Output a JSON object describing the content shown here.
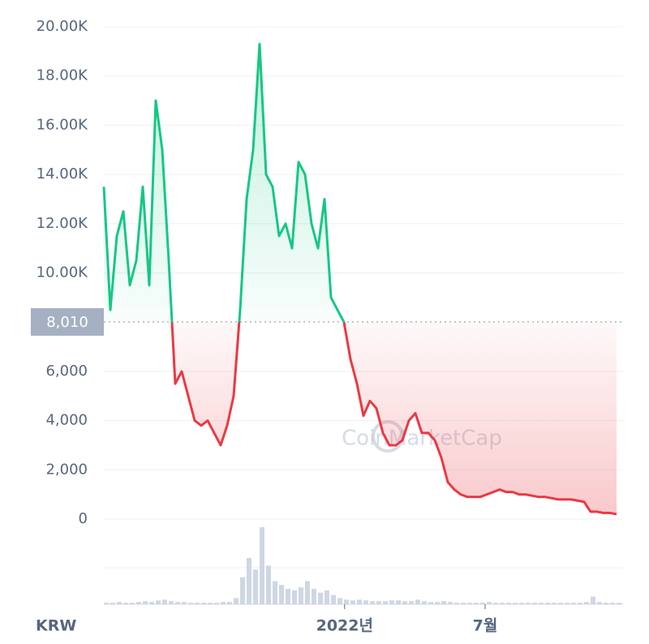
{
  "chart_data": {
    "type": "line",
    "currency": "KRW",
    "watermark": "CoinMarketCap",
    "series": [
      {
        "values": [
          13500,
          8500,
          11500,
          12500,
          9500,
          10500,
          13500,
          9500,
          17000,
          15000,
          10500,
          5500,
          6000,
          5000,
          4000,
          3800,
          4000,
          3500,
          3000,
          3800,
          5000,
          8500,
          13000,
          15000,
          19300,
          14000,
          13500,
          11500,
          12000,
          11000,
          14500,
          14000,
          12000,
          11000,
          13000,
          9000,
          8500,
          8000,
          6500,
          5500,
          4200,
          4800,
          4500,
          3500,
          3000,
          3000,
          3200,
          4000,
          4300,
          3500,
          3500,
          3200,
          2500,
          1500,
          1200,
          1000,
          900,
          900,
          900,
          1000,
          1100,
          1200,
          1100,
          1100,
          1000,
          1000,
          950,
          900,
          900,
          850,
          800,
          800,
          800,
          750,
          700,
          300,
          300,
          250,
          250,
          200
        ],
        "up_color": "#16c784",
        "down_color": "#ea3943"
      }
    ],
    "volume": [
      2,
      2,
      3,
      2,
      2,
      3,
      4,
      3,
      5,
      6,
      4,
      3,
      3,
      2,
      2,
      2,
      2,
      2,
      3,
      3,
      8,
      35,
      60,
      45,
      100,
      50,
      30,
      25,
      20,
      18,
      22,
      30,
      20,
      15,
      18,
      12,
      8,
      6,
      5,
      6,
      5,
      4,
      4,
      4,
      5,
      5,
      4,
      4,
      6,
      4,
      3,
      3,
      4,
      3,
      2,
      2,
      2,
      2,
      2,
      3,
      2,
      2,
      2,
      2,
      2,
      2,
      2,
      2,
      2,
      2,
      2,
      2,
      2,
      2,
      3,
      10,
      3,
      2,
      2,
      2
    ],
    "baseline": {
      "value": 8010,
      "label": "8,010"
    },
    "xlim": [
      0,
      80
    ],
    "xticks": [
      {
        "value": 37.1,
        "label": "2022년"
      },
      {
        "value": 58.75,
        "label": "7월"
      }
    ],
    "ylim": [
      0,
      20000
    ],
    "yticks": [
      0,
      {
        "value": 2000,
        "label": "2,000"
      },
      {
        "value": 4000,
        "label": "4,000"
      },
      {
        "value": 6000,
        "label": "6,000"
      },
      {
        "value": 10000,
        "label": "10.00K"
      },
      {
        "value": 12000,
        "label": "12.00K"
      },
      {
        "value": 14000,
        "label": "14.00K"
      },
      {
        "value": 16000,
        "label": "16.00K"
      },
      {
        "value": 18000,
        "label": "18.00K"
      },
      {
        "value": 20000,
        "label": "20.00K"
      }
    ],
    "grid": true
  }
}
